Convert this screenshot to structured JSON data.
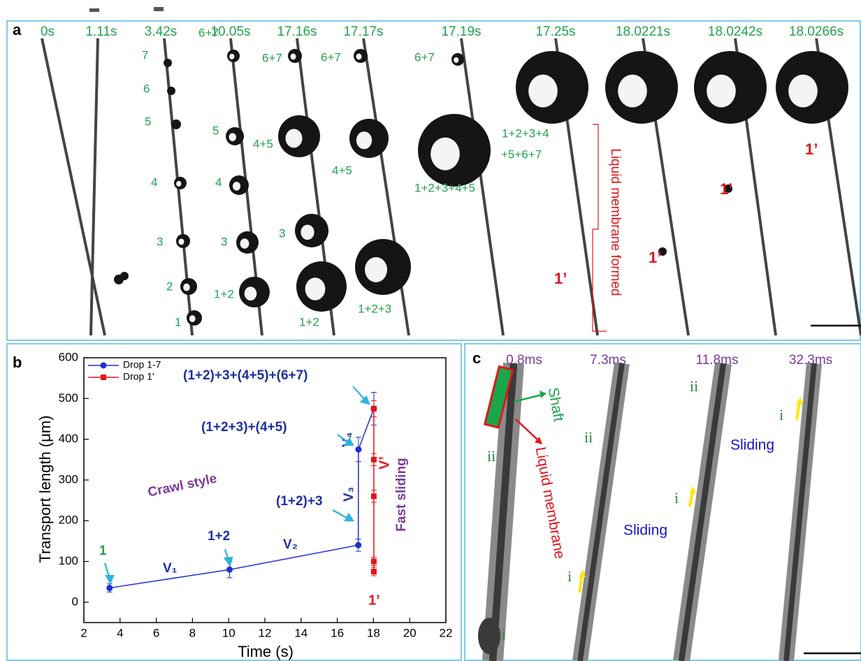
{
  "panel_a": {
    "label": "a",
    "times": [
      "0s",
      "1.11s",
      "3.42s",
      "10.05s",
      "17.16s",
      "17.17s",
      "17.19s",
      "17.25s",
      "18.0221s",
      "18.0242s",
      "18.0266s"
    ],
    "annotations": [
      "7",
      "6",
      "5",
      "4",
      "3",
      "2",
      "1",
      "6+7",
      "5",
      "4",
      "3",
      "1+2",
      "6+7",
      "4+5",
      "3",
      "1+2",
      "6+7",
      "4+5",
      "1+2+3",
      "6+7",
      "1+2+3+4+5",
      "1+2+3+4",
      "+5+6+7",
      "Liquid membrane formed",
      "1’",
      "1’",
      "1’",
      "1’"
    ]
  },
  "chart_data": {
    "type": "line",
    "label": "b",
    "x_label": "Time (s)",
    "y_label": "Transport length (μm)",
    "xlim": [
      2,
      22
    ],
    "xticks": [
      2,
      4,
      6,
      8,
      10,
      12,
      14,
      16,
      18,
      20,
      22
    ],
    "ylim": [
      -50,
      600
    ],
    "yticks": [
      0,
      100,
      200,
      300,
      400,
      500,
      600
    ],
    "legend": "top-left",
    "series": [
      {
        "name": "Drop 1-7",
        "color": "#1f2fd0",
        "marker": "circle",
        "x": [
          3.42,
          10.05,
          17.16,
          17.17,
          18.02
        ],
        "values": [
          35,
          80,
          140,
          375,
          475
        ],
        "errors": [
          10,
          20,
          15,
          30,
          40
        ]
      },
      {
        "name": "Drop 1'",
        "color": "#e3141b",
        "marker": "square",
        "x": [
          18.02,
          18.02,
          18.02,
          18.02,
          18.02
        ],
        "values": [
          75,
          100,
          260,
          350,
          475
        ],
        "errors": [
          10,
          10,
          15,
          15,
          20
        ]
      }
    ],
    "annotations": [
      "(1+2)+3+(4+5)+(6+7)",
      "(1+2+3)+(4+5)",
      "(1+2)+3",
      "1+2",
      "1",
      "Crawl style",
      "Fast sliding",
      "V₁",
      "V₂",
      "V₃",
      "V₄",
      "V’",
      "1’"
    ]
  },
  "panel_c": {
    "label": "c",
    "times": [
      "0.8ms",
      "7.3ms",
      "11.8ms",
      "32.3ms"
    ],
    "labels": [
      "Shaft",
      "Liquid membrane",
      "ii",
      "i",
      "ii",
      "i",
      "ii",
      "i",
      "i",
      "Sliding",
      "Sliding"
    ]
  }
}
